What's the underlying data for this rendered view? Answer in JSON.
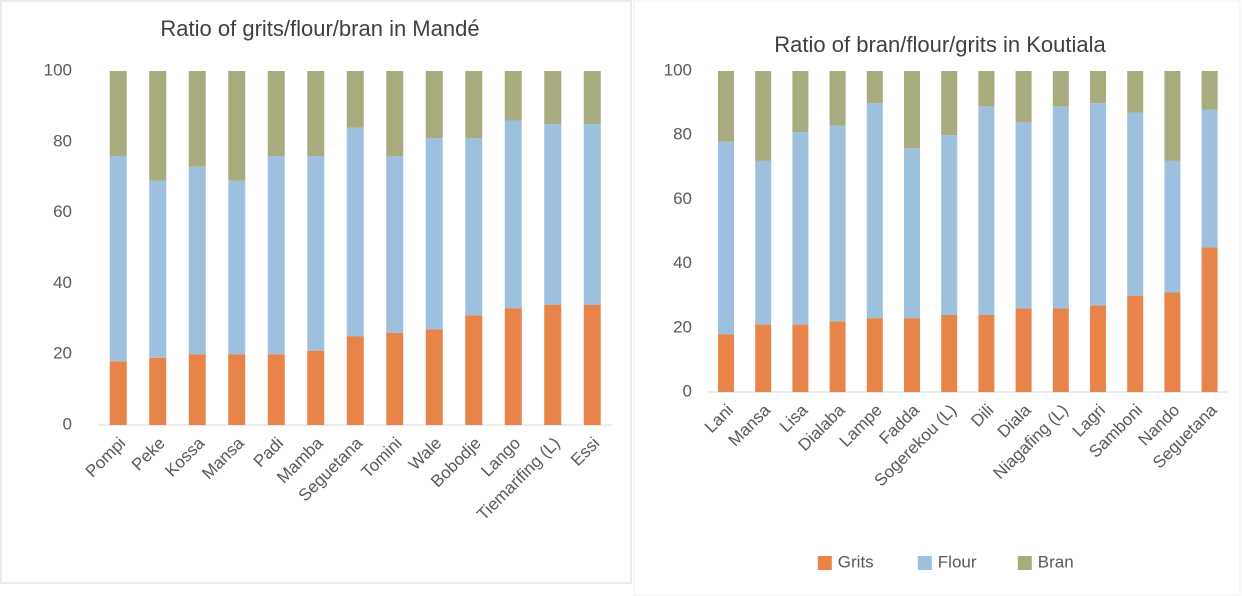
{
  "chart_data": [
    {
      "type": "stacked_bar",
      "title": "Ratio of grits/flour/bran in Mandé",
      "categories": [
        "Pompi",
        "Peke",
        "Kossa",
        "Mansa",
        "Padi",
        "Mamba",
        "Seguetana",
        "Tomini",
        "Wale",
        "Bobodje",
        "Lango",
        "Tiemarifing (L)",
        "Essi"
      ],
      "series": [
        {
          "color": "#E8834A",
          "values": [
            18,
            19,
            20,
            20,
            20,
            21,
            25,
            26,
            27,
            31,
            33,
            34,
            34
          ]
        },
        {
          "color": "#9DC0DF",
          "values": [
            58,
            50,
            53,
            49,
            56,
            55,
            59,
            50,
            54,
            50,
            53,
            51,
            51
          ]
        },
        {
          "color": "#A7AB7E",
          "values": [
            24,
            31,
            27,
            31,
            24,
            24,
            16,
            24,
            19,
            19,
            14,
            15,
            15
          ]
        }
      ],
      "ylim": [
        0,
        100
      ],
      "yticks": [
        0,
        20,
        40,
        60,
        80,
        100
      ],
      "grid": false,
      "legend": "none"
    },
    {
      "type": "stacked_bar",
      "title": "Ratio of bran/flour/grits in Koutiala",
      "categories": [
        "Lani",
        "Mansa",
        "Lisa",
        "Dialaba",
        "Lampe",
        "Fadda",
        "Sogerekou (L)",
        "Dili",
        "Diala",
        "Niagafing (L)",
        "Lagri",
        "Samboni",
        "Nando",
        "Seguetana"
      ],
      "series": [
        {
          "name": "Grits",
          "color": "#E8834A",
          "values": [
            18,
            21,
            21,
            22,
            23,
            23,
            24,
            24,
            26,
            26,
            27,
            30,
            31,
            45
          ]
        },
        {
          "name": "Flour",
          "color": "#9DC0DF",
          "values": [
            60,
            51,
            60,
            61,
            67,
            53,
            56,
            65,
            58,
            63,
            63,
            57,
            41,
            43
          ]
        },
        {
          "name": "Bran",
          "color": "#A7AB7E",
          "values": [
            22,
            28,
            19,
            17,
            10,
            24,
            20,
            11,
            16,
            11,
            10,
            13,
            28,
            12
          ]
        }
      ],
      "ylim": [
        0,
        100
      ],
      "yticks": [
        0,
        20,
        40,
        60,
        80,
        100
      ],
      "grid": false,
      "legend": "bottom"
    }
  ]
}
